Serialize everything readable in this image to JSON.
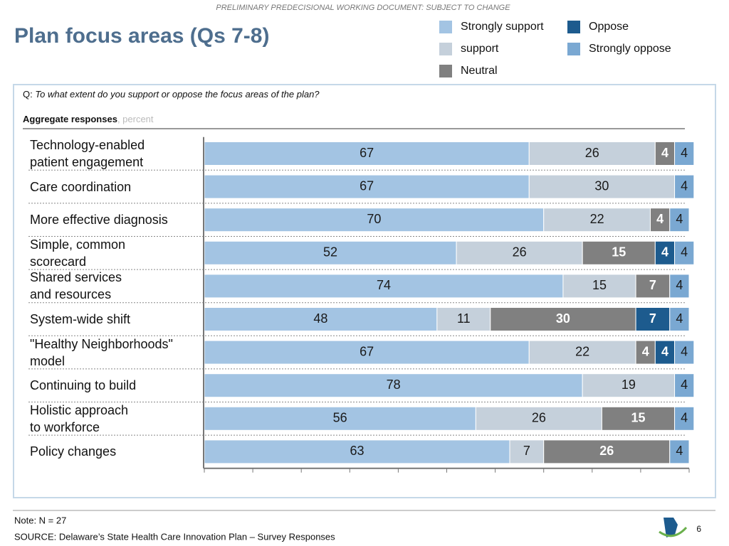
{
  "header": "PRELIMINARY PREDECISIONAL WORKING DOCUMENT: SUBJECT TO CHANGE",
  "title": "Plan focus areas (Qs 7-8)",
  "question_prefix": "Q:",
  "question": "To what extent do you support or oppose the focus areas of the plan?",
  "subtitle": "Aggregate responses",
  "unit": ", percent",
  "note": "Note: N = 27",
  "source": "SOURCE: Delaware’s State Health Care Innovation Plan – Survey Responses",
  "page_number": "6",
  "chart_data": {
    "type": "stacked_bar",
    "orientation": "horizontal",
    "categories": [
      "Technology-enabled\npatient engagement",
      "Care coordination",
      "More effective diagnosis",
      "Simple, common\nscorecard",
      "Shared services\nand resources",
      "System-wide shift",
      "\"Healthy Neighborhoods\"\nmodel",
      "Continuing to build",
      "Holistic approach\nto workforce",
      "Policy changes"
    ],
    "series": [
      {
        "name": "Strongly support",
        "color": "#a3c4e3",
        "label_color": "#1a1a1a",
        "values": [
          67,
          67,
          70,
          52,
          74,
          48,
          67,
          78,
          56,
          63
        ]
      },
      {
        "name": "support",
        "color": "#c5d0db",
        "label_color": "#1a1a1a",
        "values": [
          26,
          30,
          22,
          26,
          15,
          11,
          22,
          19,
          26,
          7
        ]
      },
      {
        "name": "Neutral",
        "color": "#808080",
        "label_color": "#ffffff",
        "values": [
          4,
          null,
          4,
          15,
          7,
          30,
          4,
          null,
          15,
          26
        ]
      },
      {
        "name": "Oppose",
        "color": "#1d5b8e",
        "label_color": "#ffffff",
        "values": [
          null,
          null,
          null,
          4,
          null,
          7,
          4,
          null,
          null,
          null
        ]
      },
      {
        "name": "Strongly oppose",
        "color": "#7aa8d2",
        "label_color": "#1a1a1a",
        "values": [
          4,
          4,
          4,
          4,
          4,
          4,
          4,
          4,
          4,
          4
        ]
      }
    ],
    "xlim": [
      0,
      100
    ],
    "xticks": [
      0,
      10,
      20,
      30,
      40,
      50,
      60,
      70,
      80,
      90,
      100
    ]
  }
}
